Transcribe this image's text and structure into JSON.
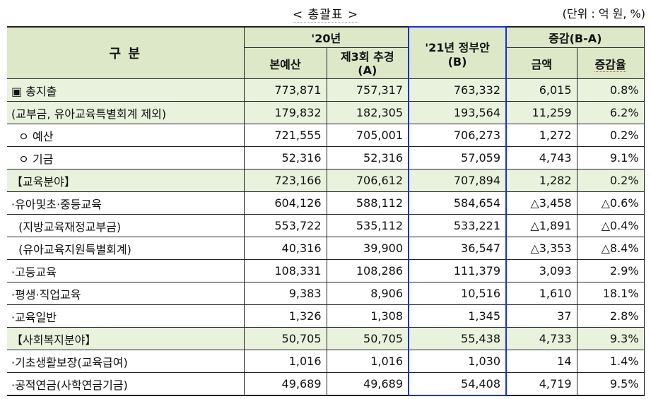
{
  "title": "< 총괄표 >",
  "unit": "(단위 : 억 원, %)",
  "header": {
    "category": "구   분",
    "y20": "'20년",
    "budget": "본예산",
    "supp_line1": "제3회 추경",
    "supp_line2": "(A)",
    "y21_line1": "'21년 정부안",
    "y21_line2": "(B)",
    "change": "증감(B-A)",
    "amount": "금액",
    "rate": "증감율"
  },
  "rows": [
    {
      "label": "▣ 총지출",
      "budget": "773,871",
      "supp": "757,317",
      "y21": "763,332",
      "amount": "6,015",
      "rate": "0.8%"
    },
    {
      "label": "(교부금, 유아교육특별회계 제외)",
      "budget": "179,832",
      "supp": "182,305",
      "y21": "193,564",
      "amount": "11,259",
      "rate": "6.2%"
    },
    {
      "label": "  ㅇ 예산",
      "budget": "721,555",
      "supp": "705,001",
      "y21": "706,273",
      "amount": "1,272",
      "rate": "0.2%"
    },
    {
      "label": "  ㅇ 기금",
      "budget": "52,316",
      "supp": "52,316",
      "y21": "57,059",
      "amount": "4,743",
      "rate": "9.1%"
    },
    {
      "label": "【교육분야】",
      "budget": "723,166",
      "supp": "706,612",
      "y21": "707,894",
      "amount": "1,282",
      "rate": "0.2%"
    },
    {
      "label": "·유아및초·중등교육",
      "budget": "604,126",
      "supp": "588,112",
      "y21": "584,654",
      "amount": "△3,458",
      "rate": "△0.6%"
    },
    {
      "label": "  (지방교육재정교부금)",
      "budget": "553,722",
      "supp": "535,112",
      "y21": "533,221",
      "amount": "△1,891",
      "rate": "△0.4%"
    },
    {
      "label": "  (유아교육지원특별회계)",
      "budget": "40,316",
      "supp": "39,900",
      "y21": "36,547",
      "amount": "△3,353",
      "rate": "△8.4%"
    },
    {
      "label": "·고등교육",
      "budget": "108,331",
      "supp": "108,286",
      "y21": "111,379",
      "amount": "3,093",
      "rate": "2.9%"
    },
    {
      "label": "·평생·직업교육",
      "budget": "9,383",
      "supp": "8,906",
      "y21": "10,516",
      "amount": "1,610",
      "rate": "18.1%"
    },
    {
      "label": "·교육일반",
      "budget": "1,326",
      "supp": "1,308",
      "y21": "1,345",
      "amount": "37",
      "rate": "2.8%"
    },
    {
      "label": "【사회복지분야】",
      "budget": "50,705",
      "supp": "50,705",
      "y21": "55,438",
      "amount": "4,733",
      "rate": "9.3%"
    },
    {
      "label": "·기초생활보장(교육급여)",
      "budget": "1,016",
      "supp": "1,016",
      "y21": "1,030",
      "amount": "14",
      "rate": "1.4%"
    },
    {
      "label": "·공적연금(사학연금기금)",
      "budget": "49,689",
      "supp": "49,689",
      "y21": "54,408",
      "amount": "4,719",
      "rate": "9.5%"
    }
  ]
}
